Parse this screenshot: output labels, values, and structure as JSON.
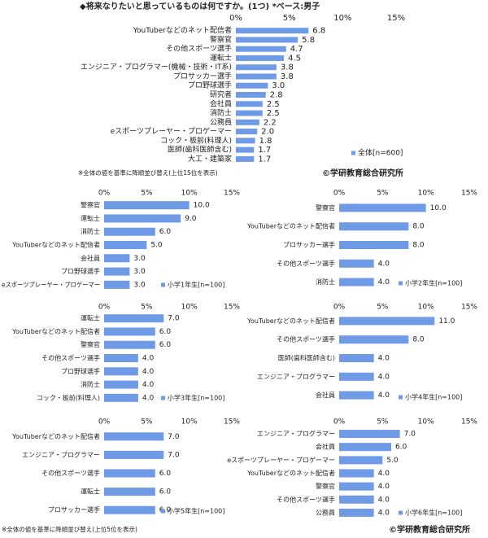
{
  "chart_data": [
    {
      "type": "bar",
      "orientation": "horizontal",
      "title": "◆将来なりたいと思っているものは何ですか。(1つ)  *ベース:男子",
      "categories": [
        "YouTuberなどのネット配信者",
        "警察官",
        "その他スポーツ選手",
        "運転士",
        "エンジニア・プログラマー(機械・技術・IT系)",
        "プロサッカー選手",
        "プロ野球選手",
        "研究者",
        "会社員",
        "消防士",
        "公務員",
        "eスポーツプレーヤー・プロゲーマー",
        "コック・板前(料理人)",
        "医師(歯科医師含む)",
        "大工・建築家"
      ],
      "series": [
        {
          "name": "全体[n=600]",
          "color": "#6f9ae6",
          "values": [
            6.8,
            5.8,
            4.7,
            4.5,
            3.8,
            3.8,
            3.0,
            2.8,
            2.5,
            2.5,
            2.2,
            2.0,
            1.8,
            1.7,
            1.7
          ],
          "value_labels": [
            "6.8",
            "5.8",
            "4.7",
            "4.5",
            "3.8",
            "3.8",
            "3.0",
            "2.8",
            "2.5",
            "2.5",
            "2.2",
            "2.0",
            "1.8",
            "1.7",
            "1.7"
          ]
        }
      ],
      "xlim": [
        0,
        15
      ],
      "xticks": [
        {
          "value": 0,
          "label": "0%"
        },
        {
          "value": 5,
          "label": "5%"
        },
        {
          "value": 10,
          "label": "10%"
        },
        {
          "value": 15,
          "label": "15%"
        }
      ],
      "note": "※全体の値を基準に降順並び替え(上位15位を表示)",
      "source": "©学研教育総合研究所"
    },
    {
      "type": "bar",
      "orientation": "horizontal",
      "categories": [
        "警察官",
        "運転士",
        "消防士",
        "YouTuberなどのネット配信者",
        "会社員",
        "プロ野球選手",
        "eスポーツプレーヤー・プロゲーマー"
      ],
      "series": [
        {
          "name": "小学1年生[n=100]",
          "color": "#6f9ae6",
          "values": [
            10.0,
            9.0,
            6.0,
            5.0,
            3.0,
            3.0,
            3.0
          ],
          "value_labels": [
            "10.0",
            "9.0",
            "6.0",
            "5.0",
            "3.0",
            "3.0",
            "3.0"
          ]
        }
      ],
      "xlim": [
        0,
        15
      ],
      "xticks": [
        {
          "value": 0,
          "label": "0%"
        },
        {
          "value": 5,
          "label": "5%"
        },
        {
          "value": 10,
          "label": "10%"
        },
        {
          "value": 15,
          "label": "15%"
        }
      ]
    },
    {
      "type": "bar",
      "orientation": "horizontal",
      "categories": [
        "警察官",
        "YouTuberなどのネット配信者",
        "プロサッカー選手",
        "その他スポーツ選手",
        "消防士"
      ],
      "series": [
        {
          "name": "小学2年生[n=100]",
          "color": "#6f9ae6",
          "values": [
            10.0,
            8.0,
            8.0,
            4.0,
            4.0
          ],
          "value_labels": [
            "10.0",
            "8.0",
            "8.0",
            "4.0",
            "4.0"
          ]
        }
      ],
      "xlim": [
        0,
        15
      ],
      "xticks": [
        {
          "value": 0,
          "label": "0%"
        },
        {
          "value": 5,
          "label": "5%"
        },
        {
          "value": 10,
          "label": "10%"
        },
        {
          "value": 15,
          "label": "15%"
        }
      ]
    },
    {
      "type": "bar",
      "orientation": "horizontal",
      "categories": [
        "運転士",
        "YouTuberなどのネット配信者",
        "警察官",
        "その他スポーツ選手",
        "プロ野球選手",
        "消防士",
        "コック・板前(料理人)"
      ],
      "series": [
        {
          "name": "小学3年生[n=100]",
          "color": "#6f9ae6",
          "values": [
            7.0,
            6.0,
            6.0,
            4.0,
            4.0,
            4.0,
            4.0
          ],
          "value_labels": [
            "7.0",
            "6.0",
            "6.0",
            "4.0",
            "4.0",
            "4.0",
            "4.0"
          ]
        }
      ],
      "xlim": [
        0,
        15
      ],
      "xticks": [
        {
          "value": 0,
          "label": "0%"
        },
        {
          "value": 5,
          "label": "5%"
        },
        {
          "value": 10,
          "label": "10%"
        },
        {
          "value": 15,
          "label": "15%"
        }
      ]
    },
    {
      "type": "bar",
      "orientation": "horizontal",
      "categories": [
        "YouTuberなどのネット配信者",
        "その他スポーツ選手",
        "医師(歯科医師含む)",
        "エンジニア・プログラマー",
        "会社員"
      ],
      "series": [
        {
          "name": "小学4年生[n=100]",
          "color": "#6f9ae6",
          "values": [
            11.0,
            8.0,
            4.0,
            4.0,
            4.0
          ],
          "value_labels": [
            "11.0",
            "8.0",
            "4.0",
            "4.0",
            "4.0"
          ]
        }
      ],
      "xlim": [
        0,
        15
      ],
      "xticks": [
        {
          "value": 0,
          "label": "0%"
        },
        {
          "value": 5,
          "label": "5%"
        },
        {
          "value": 10,
          "label": "10%"
        },
        {
          "value": 15,
          "label": "15%"
        }
      ]
    },
    {
      "type": "bar",
      "orientation": "horizontal",
      "categories": [
        "YouTuberなどのネット配信者",
        "エンジニア・プログラマー",
        "その他スポーツ選手",
        "運転士",
        "プロサッカー選手"
      ],
      "series": [
        {
          "name": "小学5年生[n=100]",
          "color": "#6f9ae6",
          "values": [
            7.0,
            7.0,
            6.0,
            6.0,
            6.0
          ],
          "value_labels": [
            "7.0",
            "7.0",
            "6.0",
            "6.0",
            "6.0"
          ]
        }
      ],
      "xlim": [
        0,
        15
      ],
      "xticks": [
        {
          "value": 0,
          "label": "0%"
        },
        {
          "value": 5,
          "label": "5%"
        },
        {
          "value": 10,
          "label": "10%"
        },
        {
          "value": 15,
          "label": "15%"
        }
      ]
    },
    {
      "type": "bar",
      "orientation": "horizontal",
      "categories": [
        "エンジニア・プログラマー",
        "会社員",
        "eスポーツプレーヤー・プロゲーマー",
        "YouTuberなどのネット配信者",
        "警察官",
        "その他スポーツ選手",
        "公務員"
      ],
      "series": [
        {
          "name": "小学6年生[n=100]",
          "color": "#6f9ae6",
          "values": [
            7.0,
            6.0,
            5.0,
            4.0,
            4.0,
            4.0,
            4.0
          ],
          "value_labels": [
            "7.0",
            "6.0",
            "5.0",
            "4.0",
            "4.0",
            "4.0",
            "4.0"
          ]
        }
      ],
      "xlim": [
        0,
        15
      ],
      "xticks": [
        {
          "value": 0,
          "label": "0%"
        },
        {
          "value": 5,
          "label": "5%"
        },
        {
          "value": 10,
          "label": "10%"
        },
        {
          "value": 15,
          "label": "15%"
        }
      ]
    }
  ],
  "footer": {
    "note": "※全体の値を基準に降順並び替え(上位5位を表示)",
    "source": "©学研教育総合研究所"
  }
}
